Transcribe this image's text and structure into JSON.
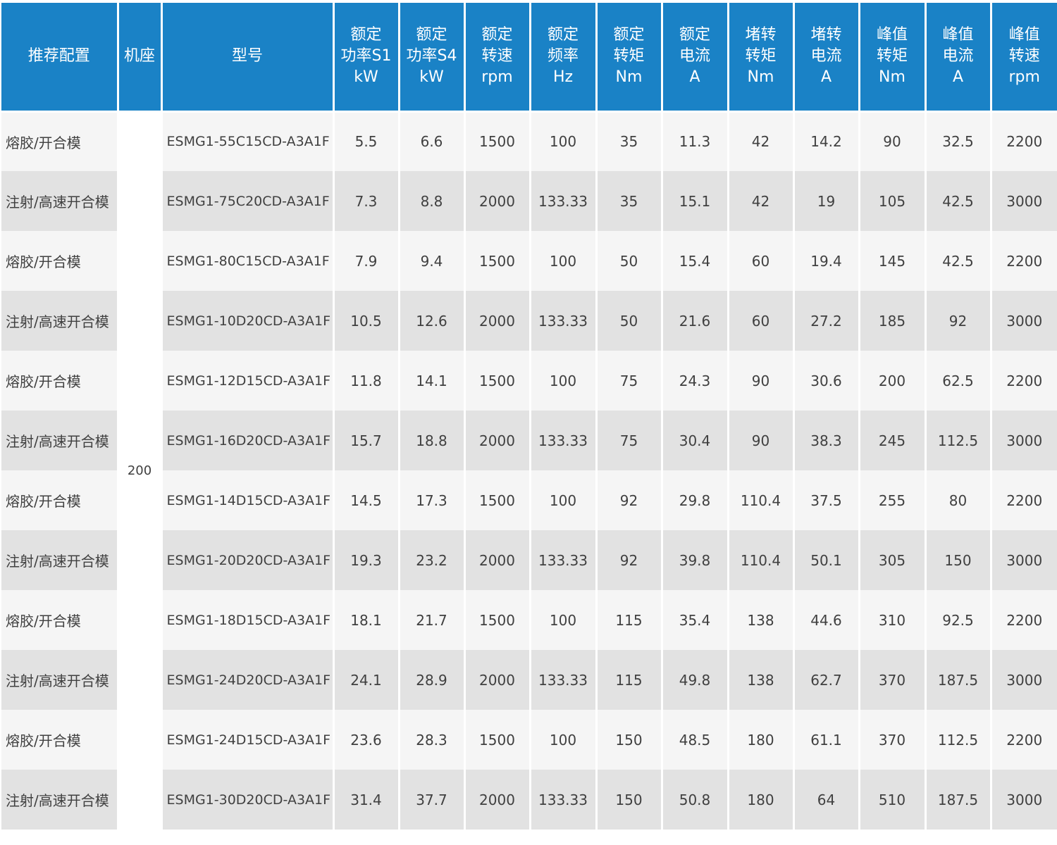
{
  "table": {
    "accent_color": "#1a82c6",
    "headers": [
      "推荐配置",
      "机座",
      "型号",
      "额定\n功率S1\nkW",
      "额定\n功率S4\nkW",
      "额定\n转速\nrpm",
      "额定\n频率\nHz",
      "额定\n转矩\nNm",
      "额定\n电流\nA",
      "堵转\n转矩\nNm",
      "堵转\n电流\nA",
      "峰值\n转矩\nNm",
      "峰值\n电流\nA",
      "峰值\n转速\nrpm"
    ],
    "frame": "200",
    "rows": [
      [
        "熔胶/开合模",
        "ESMG1-55C15CD-A3A1F",
        "5.5",
        "6.6",
        "1500",
        "100",
        "35",
        "11.3",
        "42",
        "14.2",
        "90",
        "32.5",
        "2200"
      ],
      [
        "注射/高速开合模",
        "ESMG1-75C20CD-A3A1F",
        "7.3",
        "8.8",
        "2000",
        "133.33",
        "35",
        "15.1",
        "42",
        "19",
        "105",
        "42.5",
        "3000"
      ],
      [
        "熔胶/开合模",
        "ESMG1-80C15CD-A3A1F",
        "7.9",
        "9.4",
        "1500",
        "100",
        "50",
        "15.4",
        "60",
        "19.4",
        "145",
        "42.5",
        "2200"
      ],
      [
        "注射/高速开合模",
        "ESMG1-10D20CD-A3A1F",
        "10.5",
        "12.6",
        "2000",
        "133.33",
        "50",
        "21.6",
        "60",
        "27.2",
        "185",
        "92",
        "3000"
      ],
      [
        "熔胶/开合模",
        "ESMG1-12D15CD-A3A1F",
        "11.8",
        "14.1",
        "1500",
        "100",
        "75",
        "24.3",
        "90",
        "30.6",
        "200",
        "62.5",
        "2200"
      ],
      [
        "注射/高速开合模",
        "ESMG1-16D20CD-A3A1F",
        "15.7",
        "18.8",
        "2000",
        "133.33",
        "75",
        "30.4",
        "90",
        "38.3",
        "245",
        "112.5",
        "3000"
      ],
      [
        "熔胶/开合模",
        "ESMG1-14D15CD-A3A1F",
        "14.5",
        "17.3",
        "1500",
        "100",
        "92",
        "29.8",
        "110.4",
        "37.5",
        "255",
        "80",
        "2200"
      ],
      [
        "注射/高速开合模",
        "ESMG1-20D20CD-A3A1F",
        "19.3",
        "23.2",
        "2000",
        "133.33",
        "92",
        "39.8",
        "110.4",
        "50.1",
        "305",
        "150",
        "3000"
      ],
      [
        "熔胶/开合模",
        "ESMG1-18D15CD-A3A1F",
        "18.1",
        "21.7",
        "1500",
        "100",
        "115",
        "35.4",
        "138",
        "44.6",
        "310",
        "92.5",
        "2200"
      ],
      [
        "注射/高速开合模",
        "ESMG1-24D20CD-A3A1F",
        "24.1",
        "28.9",
        "2000",
        "133.33",
        "115",
        "49.8",
        "138",
        "62.7",
        "370",
        "187.5",
        "3000"
      ],
      [
        "熔胶/开合模",
        "ESMG1-24D15CD-A3A1F",
        "23.6",
        "28.3",
        "1500",
        "100",
        "150",
        "48.5",
        "180",
        "61.1",
        "370",
        "112.5",
        "2200"
      ],
      [
        "注射/高速开合模",
        "ESMG1-30D20CD-A3A1F",
        "31.4",
        "37.7",
        "2000",
        "133.33",
        "150",
        "50.8",
        "180",
        "64",
        "510",
        "187.5",
        "3000"
      ]
    ]
  }
}
